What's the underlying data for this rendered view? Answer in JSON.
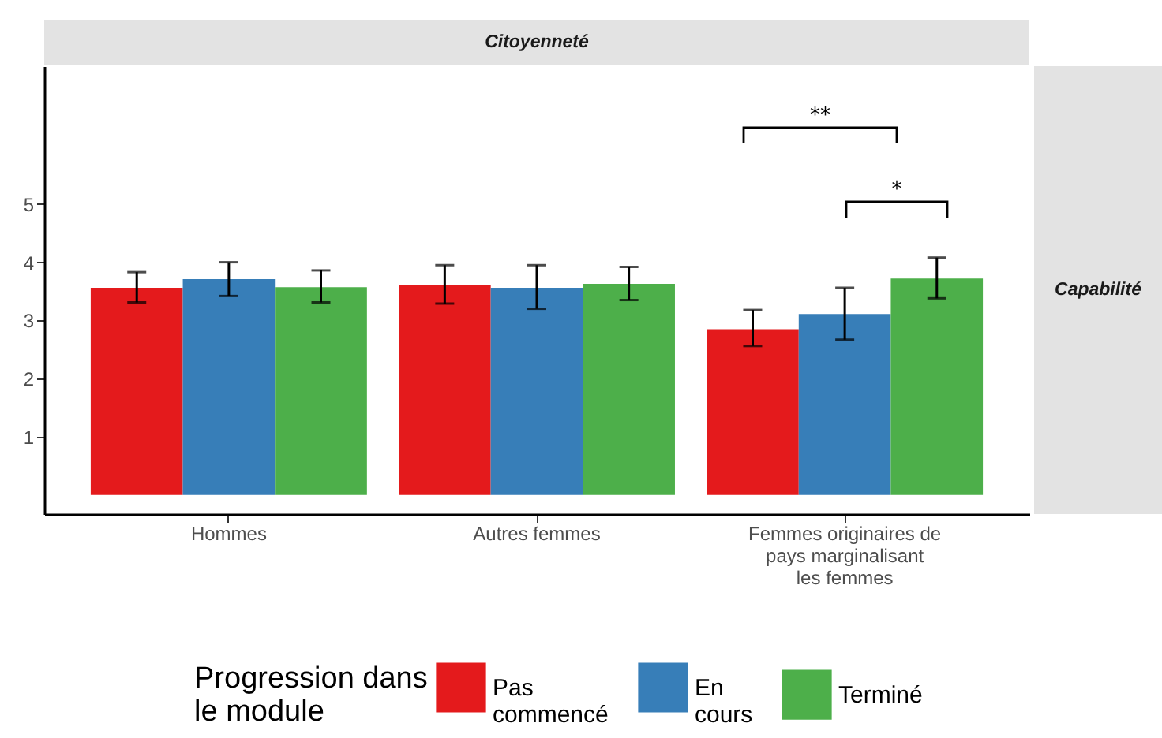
{
  "chart_data": {
    "type": "bar",
    "title": "Citoyenneté",
    "categories": [
      "Hommes",
      "Autres femmes",
      "Femmes originaires de pays marginalisant les femmes"
    ],
    "series": [
      {
        "name": "Pas commencé",
        "color": "#e41a1c",
        "values": [
          3.56,
          3.61,
          2.85
        ],
        "errors": [
          [
            3.31,
            3.83
          ],
          [
            3.29,
            3.95
          ],
          [
            2.56,
            3.18
          ]
        ]
      },
      {
        "name": "En cours",
        "color": "#377eb8",
        "values": [
          3.71,
          3.56,
          3.11
        ],
        "errors": [
          [
            3.42,
            4.0
          ],
          [
            3.2,
            3.95
          ],
          [
            2.67,
            3.56
          ]
        ]
      },
      {
        "name": "Terminé",
        "color": "#4daf4a",
        "values": [
          3.57,
          3.63,
          3.72
        ],
        "errors": [
          [
            3.31,
            3.86
          ],
          [
            3.35,
            3.92
          ],
          [
            3.38,
            4.08
          ]
        ]
      }
    ],
    "legend_title": "Progression dans le module",
    "legend": "bottom",
    "ylim": [
      -0.33,
      7.37
    ],
    "yticks": [
      1,
      2,
      3,
      4,
      5
    ],
    "grid": false,
    "annotations": [
      "**",
      "*",
      "Capabilité"
    ]
  }
}
